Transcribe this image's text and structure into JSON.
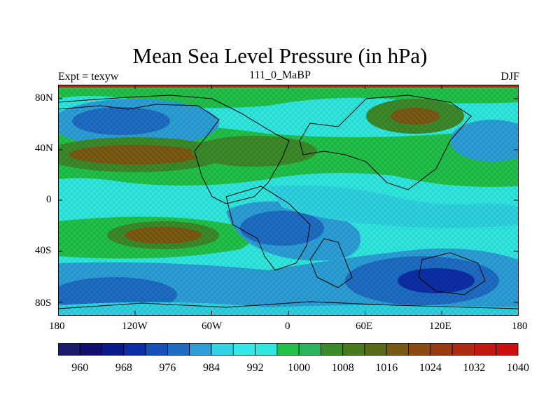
{
  "title": "Mean Sea Level Pressure (in hPa)",
  "subtitle_left": "Expt = texyw",
  "subtitle_center": "111_0_MaBP",
  "subtitle_right": "DJF",
  "x_ticks": [
    "180",
    "120W",
    "60W",
    "0",
    "60E",
    "120E",
    "180"
  ],
  "y_ticks": [
    "80N",
    "40N",
    "0",
    "40S",
    "80S"
  ],
  "colorbar_labels": [
    "960",
    "968",
    "976",
    "984",
    "992",
    "1000",
    "1008",
    "1016",
    "1024",
    "1032",
    "1040"
  ],
  "colorbar_colors": [
    "#1b1b6e",
    "#10106f",
    "#0a1a8c",
    "#0c2fa6",
    "#1550b8",
    "#1e6cc4",
    "#2b9fd6",
    "#2fd3e3",
    "#33e8e8",
    "#2fe8e0",
    "#22c14a",
    "#2ab55a",
    "#3c8a2a",
    "#4a7a1e",
    "#5a6b17",
    "#7a5a12",
    "#8a4a14",
    "#9a3a12",
    "#b02a12",
    "#c21a10",
    "#cc1010"
  ],
  "map_layers": {
    "background": "#2fe8e0",
    "regions": [
      {
        "color": "#22c14a",
        "name": "north-midlatitude-high-band"
      },
      {
        "color": "#22c14a",
        "name": "south-midlatitude-high-band"
      },
      {
        "color": "#2b9fd6",
        "name": "north-pacific-low"
      },
      {
        "color": "#1e6cc4",
        "name": "southern-ocean-low"
      },
      {
        "color": "#1e6cc4",
        "name": "africa-low"
      },
      {
        "color": "#7a5a12",
        "name": "atlantic-high"
      },
      {
        "color": "#7a5a12",
        "name": "south-pacific-high"
      },
      {
        "color": "#7a5a12",
        "name": "asia-high"
      }
    ]
  },
  "colors": {
    "frame": "#000000",
    "coastline": "#000000"
  }
}
